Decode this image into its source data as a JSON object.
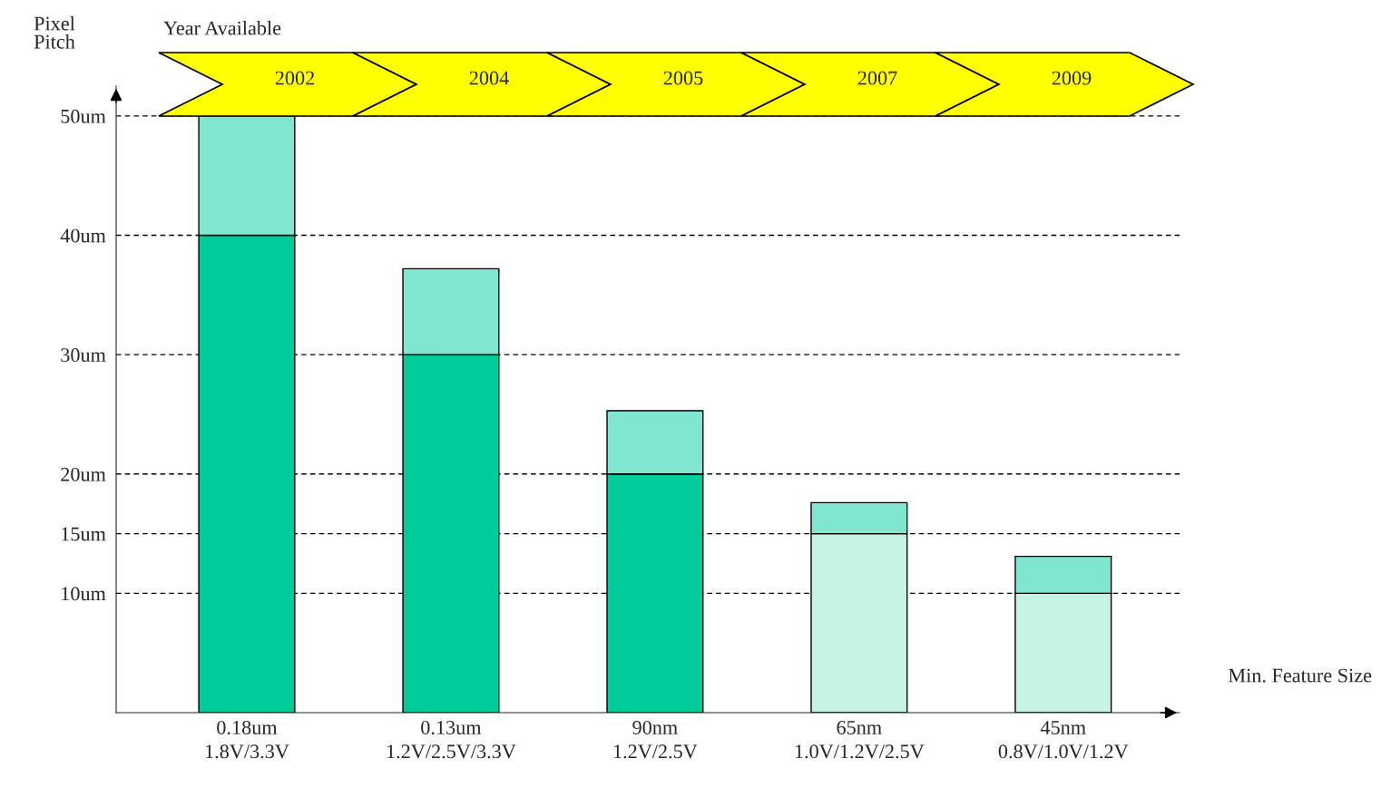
{
  "chart_data": {
    "type": "bar",
    "stacked": true,
    "ylabel": "Pixel\nPitch",
    "xlabel": "Min. Feature Size",
    "categories": [
      "0.18um\n1.8V/3.3V",
      "0.13um\n1.2V/2.5V/3.3V",
      "90nm\n1.2V/2.5V",
      "65nm\n1.0V/1.2V/2.5V",
      "45nm\n0.8V/1.0V/1.2V"
    ],
    "series": [
      {
        "colors": [
          "#00cc99",
          "#00cc99",
          "#00cc99",
          "#c8f2e4",
          "#c8f2e4"
        ],
        "values": [
          40,
          30,
          20,
          15,
          10
        ]
      },
      {
        "color": "#80e6d0",
        "values": [
          10,
          7.2,
          5.3,
          2.6,
          3.1
        ]
      }
    ],
    "ylim": [
      0,
      52.5
    ],
    "yticks": [
      {
        "value": 10,
        "label": "10um"
      },
      {
        "value": 15,
        "label": "15um"
      },
      {
        "value": 20,
        "label": "20um"
      },
      {
        "value": 30,
        "label": "30um"
      },
      {
        "value": 40,
        "label": "40um"
      },
      {
        "value": 50,
        "label": "50um"
      }
    ],
    "grid": "y",
    "annotations": [
      "Year Available",
      "2002",
      "2004",
      "2005",
      "2007",
      "2009"
    ]
  }
}
